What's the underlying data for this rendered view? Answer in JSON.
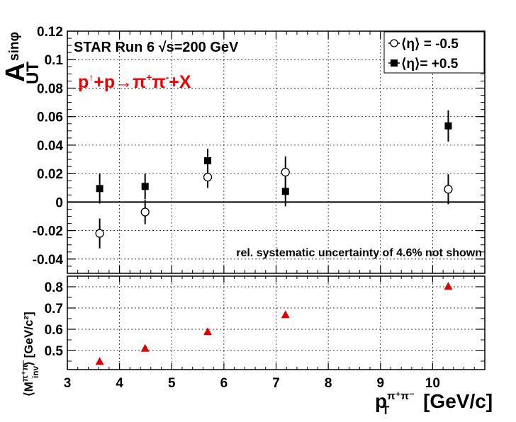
{
  "chart_data": [
    {
      "type": "scatter",
      "panel": "top",
      "ylabel": "A",
      "ylabel_sub": "UT",
      "ylabel_sup": "sinφ",
      "xlim": [
        3,
        11
      ],
      "ylim": [
        -0.05,
        0.12
      ],
      "grid": true,
      "xticks": [
        "3",
        "4",
        "5",
        "6",
        "7",
        "8",
        "9",
        "10"
      ],
      "yticks": [
        "-0.04",
        "-0.02",
        "0",
        "0.02",
        "0.04",
        "0.06",
        "0.08",
        "0.1",
        "0.12"
      ],
      "legend_position": "top-right",
      "series": [
        {
          "name": "⟨η⟩ = -0.5",
          "marker": "open-circle",
          "x": [
            3.62,
            4.49,
            5.69,
            7.18,
            10.3
          ],
          "y": [
            -0.022,
            -0.007,
            0.0175,
            0.021,
            0.009
          ],
          "err": [
            0.0105,
            0.0085,
            0.0075,
            0.011,
            0.0105
          ]
        },
        {
          "name": "⟨η⟩= +0.5",
          "marker": "filled-square",
          "x": [
            3.62,
            4.49,
            5.69,
            7.18,
            10.3
          ],
          "y": [
            0.0095,
            0.011,
            0.029,
            0.0075,
            0.0535
          ],
          "err": [
            0.0105,
            0.009,
            0.0085,
            0.0105,
            0.011
          ]
        }
      ],
      "annotations": {
        "experiment_prefix": "STAR Run 6 ",
        "experiment_sqrt": "√",
        "experiment_suffix": "s=200 GeV",
        "reaction_p1": "p",
        "reaction_arrow_up": "↑",
        "reaction_plus": "+p",
        "reaction_arrow": "→",
        "reaction_pi": "π",
        "reaction_plus_sup": "+",
        "reaction_minus_sup": "-",
        "reaction_tail": "+X",
        "systematic": "rel. systematic uncertainty of 4.6% not shown"
      }
    },
    {
      "type": "scatter",
      "panel": "bottom",
      "ylabel_left": "⟨M",
      "ylabel_sub": "inv",
      "ylabel_sup": "π⁺π⁻",
      "ylabel_right": "⟩ [GeV/c²]",
      "xlabel": "p",
      "xlabel_sub": "T",
      "xlabel_sup": "π⁺π⁻",
      "xlabel_unit": " [GeV/c]",
      "xlim": [
        3,
        11
      ],
      "ylim": [
        0.41,
        0.85
      ],
      "grid": true,
      "xticks": [
        "3",
        "4",
        "5",
        "6",
        "7",
        "8",
        "9",
        "10"
      ],
      "yticks": [
        "0.5",
        "0.6",
        "0.7",
        "0.8"
      ],
      "series": [
        {
          "marker": "red-triangle",
          "color": "#dd0000",
          "x": [
            3.62,
            4.49,
            5.69,
            7.18,
            10.3
          ],
          "y": [
            0.449,
            0.511,
            0.589,
            0.669,
            0.803
          ]
        }
      ]
    }
  ]
}
